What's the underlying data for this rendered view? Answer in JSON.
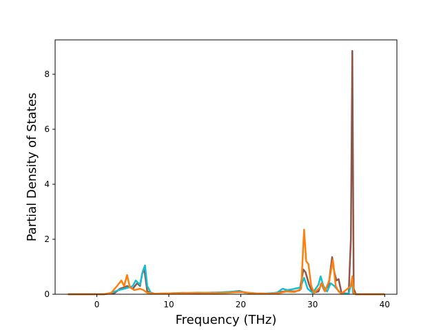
{
  "chart_data": {
    "type": "line",
    "title": "",
    "xlabel": "Frequency (THz)",
    "ylabel": "Partial Density of States",
    "xlim": [
      -5.8,
      41.7
    ],
    "ylim": [
      0,
      9.25
    ],
    "xticks": [
      0,
      10,
      20,
      30,
      40
    ],
    "yticks": [
      0,
      2,
      4,
      6,
      8
    ],
    "grid": false,
    "legend": "none",
    "series": [
      {
        "color": "#8c564b",
        "points": [
          [
            -4,
            0
          ],
          [
            1,
            0
          ],
          [
            2.5,
            0.05
          ],
          [
            3.2,
            0.2
          ],
          [
            3.8,
            0.25
          ],
          [
            4.2,
            0.3
          ],
          [
            5,
            0.2
          ],
          [
            5.6,
            0.4
          ],
          [
            6,
            0.3
          ],
          [
            6.3,
            0.75
          ],
          [
            6.6,
            0.9
          ],
          [
            7,
            0.1
          ],
          [
            8,
            0.02
          ],
          [
            10,
            0.03
          ],
          [
            12,
            0.05
          ],
          [
            14,
            0.04
          ],
          [
            16,
            0.06
          ],
          [
            18,
            0.07
          ],
          [
            19.8,
            0.12
          ],
          [
            20.5,
            0.06
          ],
          [
            22,
            0.03
          ],
          [
            24,
            0.02
          ],
          [
            25.5,
            0.08
          ],
          [
            26.5,
            0.12
          ],
          [
            27.5,
            0.1
          ],
          [
            28.2,
            0.15
          ],
          [
            28.7,
            0.9
          ],
          [
            29,
            0.8
          ],
          [
            29.5,
            0.35
          ],
          [
            30,
            0.05
          ],
          [
            30.8,
            0.1
          ],
          [
            31.2,
            0.4
          ],
          [
            31.6,
            0.15
          ],
          [
            32.2,
            0.3
          ],
          [
            32.7,
            1.35
          ],
          [
            33,
            0.8
          ],
          [
            33.3,
            0.5
          ],
          [
            33.6,
            0.55
          ],
          [
            34,
            0.05
          ],
          [
            35,
            0.02
          ],
          [
            35.3,
            2
          ],
          [
            35.5,
            8.85
          ],
          [
            35.7,
            0.2
          ],
          [
            36,
            0
          ],
          [
            40,
            0
          ]
        ]
      },
      {
        "color": "#17becf",
        "points": [
          [
            -4,
            0
          ],
          [
            1,
            0
          ],
          [
            2,
            0.05
          ],
          [
            3,
            0.15
          ],
          [
            3.8,
            0.2
          ],
          [
            4.5,
            0.25
          ],
          [
            5,
            0.3
          ],
          [
            5.4,
            0.5
          ],
          [
            6,
            0.35
          ],
          [
            6.4,
            0.85
          ],
          [
            6.7,
            1.05
          ],
          [
            7,
            0.3
          ],
          [
            7.5,
            0.05
          ],
          [
            8,
            0.02
          ],
          [
            10,
            0.02
          ],
          [
            12,
            0.04
          ],
          [
            14,
            0.06
          ],
          [
            16,
            0.05
          ],
          [
            18,
            0.08
          ],
          [
            20,
            0.1
          ],
          [
            21,
            0.05
          ],
          [
            23,
            0.02
          ],
          [
            25,
            0.05
          ],
          [
            25.8,
            0.2
          ],
          [
            26.5,
            0.15
          ],
          [
            27.5,
            0.2
          ],
          [
            28.3,
            0.25
          ],
          [
            28.8,
            0.6
          ],
          [
            29.3,
            0.2
          ],
          [
            30,
            0.05
          ],
          [
            30.8,
            0.35
          ],
          [
            31.1,
            0.65
          ],
          [
            31.5,
            0.3
          ],
          [
            32,
            0.1
          ],
          [
            32.5,
            0.4
          ],
          [
            33,
            0.3
          ],
          [
            33.5,
            0.15
          ],
          [
            34,
            0.02
          ],
          [
            35,
            0.02
          ],
          [
            35.45,
            0.5
          ],
          [
            35.6,
            0.05
          ],
          [
            36,
            0
          ],
          [
            40,
            0
          ]
        ]
      },
      {
        "color": "#ff7f0e",
        "points": [
          [
            -4,
            0
          ],
          [
            1,
            0
          ],
          [
            2,
            0.05
          ],
          [
            2.8,
            0.3
          ],
          [
            3.4,
            0.5
          ],
          [
            3.8,
            0.3
          ],
          [
            4.2,
            0.7
          ],
          [
            4.6,
            0.25
          ],
          [
            5.2,
            0.15
          ],
          [
            6,
            0.2
          ],
          [
            6.5,
            0.15
          ],
          [
            7,
            0.05
          ],
          [
            8,
            0.02
          ],
          [
            10,
            0.03
          ],
          [
            12,
            0.04
          ],
          [
            14,
            0.05
          ],
          [
            16,
            0.04
          ],
          [
            18,
            0.05
          ],
          [
            20,
            0.08
          ],
          [
            22,
            0.03
          ],
          [
            24,
            0.02
          ],
          [
            25.5,
            0.05
          ],
          [
            26.3,
            0.1
          ],
          [
            27.5,
            0.08
          ],
          [
            28.4,
            0.2
          ],
          [
            28.8,
            2.35
          ],
          [
            29.1,
            1.2
          ],
          [
            29.4,
            1.1
          ],
          [
            29.8,
            0.3
          ],
          [
            30.2,
            0.05
          ],
          [
            31,
            0.25
          ],
          [
            31.3,
            0.4
          ],
          [
            31.7,
            0.1
          ],
          [
            32.3,
            0.5
          ],
          [
            32.8,
            1.25
          ],
          [
            33.2,
            0.3
          ],
          [
            33.6,
            0.1
          ],
          [
            34,
            0.02
          ],
          [
            35.3,
            0.3
          ],
          [
            35.5,
            0.65
          ],
          [
            35.7,
            0.05
          ],
          [
            36,
            0
          ],
          [
            40,
            0
          ]
        ]
      }
    ]
  }
}
